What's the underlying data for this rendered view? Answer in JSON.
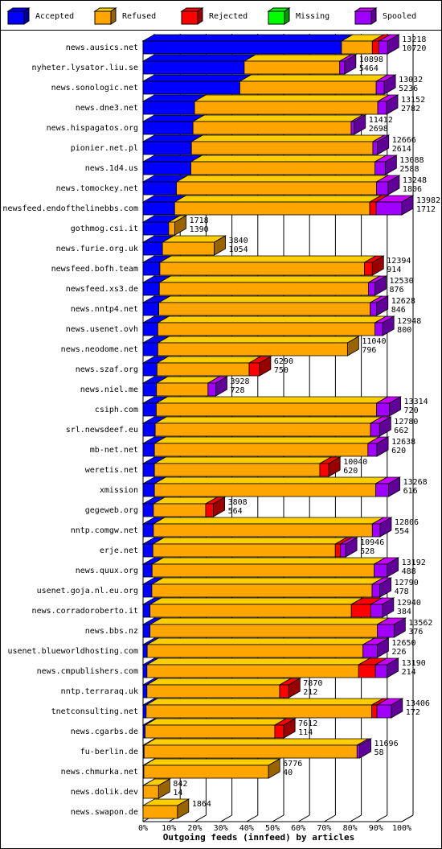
{
  "chart_data": {
    "type": "bar",
    "orientation": "horizontal",
    "stacked": true,
    "title": "Outgoing feeds (innfeed) by articles",
    "categories": [
      "news.ausics.net",
      "nyheter.lysator.liu.se",
      "news.sonologic.net",
      "news.dne3.net",
      "news.hispagatos.org",
      "pionier.net.pl",
      "news.1d4.us",
      "news.tomockey.net",
      "newsfeed.endofthelinebbs.com",
      "gothmog.csi.it",
      "news.furie.org.uk",
      "newsfeed.bofh.team",
      "newsfeed.xs3.de",
      "news.nntp4.net",
      "news.usenet.ovh",
      "news.neodome.net",
      "news.szaf.org",
      "news.niel.me",
      "csiph.com",
      "srl.newsdeef.eu",
      "mb-net.net",
      "weretis.net",
      "xmission",
      "gegeweb.org",
      "nntp.comgw.net",
      "erje.net",
      "news.quux.org",
      "usenet.goja.nl.eu.org",
      "news.corradoroberto.it",
      "news.bbs.nz",
      "usenet.blueworldhosting.com",
      "news.cmpublishers.com",
      "nntp.terraraq.uk",
      "tnetconsulting.net",
      "news.cgarbs.de",
      "fu-berlin.de",
      "news.chmurka.net",
      "news.dolik.dev",
      "news.swapon.de"
    ],
    "offered": [
      13218,
      10898,
      13032,
      13152,
      11412,
      12666,
      13088,
      13248,
      13982,
      1718,
      3840,
      12394,
      12530,
      12628,
      12948,
      11040,
      6290,
      3928,
      13314,
      12780,
      12638,
      10040,
      13268,
      3808,
      12806,
      10946,
      13192,
      12790,
      12940,
      13562,
      12650,
      13190,
      7870,
      13406,
      7612,
      11696,
      6776,
      842,
      1864
    ],
    "accepted": [
      10720,
      5464,
      5236,
      2782,
      2698,
      2614,
      2588,
      1806,
      1712,
      1390,
      1054,
      914,
      876,
      846,
      800,
      796,
      750,
      728,
      720,
      662,
      620,
      620,
      616,
      564,
      554,
      528,
      488,
      478,
      384,
      376,
      226,
      214,
      212,
      172,
      114,
      58,
      40,
      14,
      null
    ],
    "series": [
      {
        "name": "Accepted",
        "color": "#0000ff",
        "values": [
          76.7,
          39.1,
          37.4,
          19.9,
          19.3,
          18.7,
          18.5,
          12.9,
          12.2,
          9.9,
          7.5,
          6.5,
          6.3,
          6.1,
          5.7,
          5.7,
          5.4,
          5.2,
          5.1,
          4.7,
          4.4,
          4.4,
          4.4,
          4.0,
          4.0,
          3.8,
          3.5,
          3.4,
          2.7,
          2.7,
          1.6,
          1.5,
          1.5,
          1.2,
          0.8,
          0.4,
          0.3,
          0.1,
          0
        ]
      },
      {
        "name": "Refused",
        "color": "#ffa500",
        "values": [
          11.9,
          36.9,
          52.7,
          70.8,
          61.1,
          70.1,
          71.1,
          77.3,
          75.4,
          2.4,
          20.0,
          79.1,
          80.8,
          81.7,
          83.9,
          73.3,
          35.6,
          19.9,
          85.1,
          83.2,
          82.5,
          63.9,
          85.5,
          20.2,
          84.6,
          70.5,
          85.8,
          85.1,
          77.8,
          87.8,
          83.4,
          81.8,
          51.3,
          87.2,
          50.1,
          82.3,
          48.2,
          5.9,
          13.3
        ]
      },
      {
        "name": "Rejected",
        "color": "#ff0000",
        "values": [
          2.5,
          0,
          0,
          0,
          0,
          0,
          0,
          0,
          2.5,
          0,
          0,
          3.0,
          0,
          0,
          0,
          0,
          4.0,
          0,
          0,
          0,
          0,
          3.5,
          0,
          3.0,
          0,
          2.0,
          0,
          0,
          7.5,
          0,
          0,
          6.5,
          3.5,
          2.0,
          3.5,
          0,
          0,
          0,
          0
        ]
      },
      {
        "name": "Missing",
        "color": "#00ff00",
        "values": [
          0,
          0,
          0,
          0,
          0,
          0,
          0,
          0,
          0,
          0,
          0,
          0,
          0,
          0,
          0,
          0,
          0,
          0,
          0,
          0,
          0,
          0,
          0,
          0,
          0,
          0,
          0,
          0,
          0,
          0,
          0,
          0,
          0,
          0,
          0,
          0,
          0,
          0,
          0
        ]
      },
      {
        "name": "Spooled",
        "color": "#a000ff",
        "values": [
          3.4,
          1.9,
          3.1,
          3.4,
          1.2,
          1.8,
          4.0,
          4.5,
          9.9,
          0,
          0,
          0,
          2.5,
          2.5,
          3.0,
          0,
          0,
          3.0,
          5.0,
          3.5,
          3.5,
          0,
          5.0,
          0,
          3.0,
          2.0,
          5.0,
          3.0,
          4.5,
          6.5,
          5.5,
          4.5,
          0,
          5.5,
          0,
          1.0,
          0,
          0,
          0
        ]
      }
    ],
    "xlim": [
      0,
      100
    ],
    "xticks": [
      {
        "value": 0,
        "label": "0%"
      },
      {
        "value": 10,
        "label": "10%"
      },
      {
        "value": 20,
        "label": "20%"
      },
      {
        "value": 30,
        "label": "30%"
      },
      {
        "value": 40,
        "label": "40%"
      },
      {
        "value": 50,
        "label": "50%"
      },
      {
        "value": 60,
        "label": "60%"
      },
      {
        "value": 70,
        "label": "70%"
      },
      {
        "value": 80,
        "label": "80%"
      },
      {
        "value": 90,
        "label": "90%"
      },
      {
        "value": 100,
        "label": "100%"
      }
    ],
    "grid": true,
    "legend": "top"
  }
}
